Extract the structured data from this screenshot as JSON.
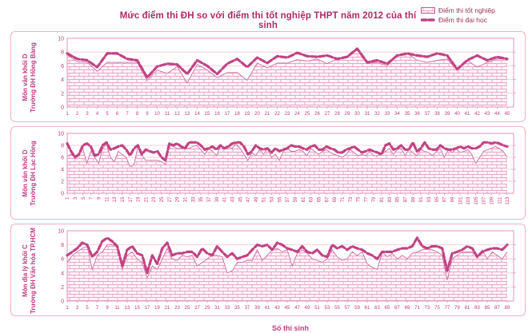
{
  "header": {
    "title": "Mức điểm thi ĐH so với điểm thi tốt nghiệp THPT năm 2012 của thí sinh",
    "legend": [
      {
        "label": "Điểm thi tốt nghiệp",
        "swatch": "pattern-area-swatch"
      },
      {
        "label": "Điểm thi đại học",
        "swatch": "dashed-line-swatch"
      }
    ]
  },
  "footer": {
    "xlabel": "Số thí sinh"
  },
  "colors": {
    "line": "#c14383",
    "area_outline": "#cc6ba2",
    "brick_line": "#eaa6c6",
    "brick_bg": "#fdf4f9",
    "grid": "#f3c2d8",
    "axis": "#df93bb",
    "tick_text": "#c23a81",
    "title_text": "#ad2b67",
    "legend_text": "#9d3156",
    "panel_border": "#efaecb"
  },
  "chart_data": [
    {
      "type": "area",
      "ylabel1": "Môn văn khối D",
      "ylabel2": "Trường ĐH Hồng Bàng",
      "x_start": 1,
      "n": 45,
      "x_tick_step": 1,
      "x_ticks_rotated": false,
      "ylim": [
        0,
        10
      ],
      "yticks": [
        0,
        2,
        4,
        6,
        8,
        10
      ],
      "grid": true,
      "legend_position": "top-right",
      "series": [
        {
          "name": "Điểm thi tốt nghiệp",
          "type": "area",
          "values": [
            7.6,
            6.6,
            6.5,
            5.2,
            6.5,
            6.5,
            6.5,
            6.5,
            3.9,
            5.4,
            4.9,
            5.9,
            3.5,
            6.2,
            5.4,
            4.3,
            5.0,
            5.0,
            3.9,
            6.4,
            5.7,
            6.4,
            6.4,
            6.9,
            6.7,
            7.0,
            6.3,
            7.0,
            7.3,
            8.3,
            6.3,
            6.5,
            6.0,
            7.5,
            7.8,
            6.8,
            6.5,
            6.8,
            7.0,
            5.4,
            6.8,
            5.8,
            6.5,
            7.0,
            7.0
          ]
        },
        {
          "name": "Điểm thi đại học",
          "type": "line",
          "values": [
            7.8,
            7.0,
            6.8,
            5.8,
            7.8,
            7.8,
            7.0,
            6.8,
            4.3,
            5.9,
            6.3,
            6.2,
            4.8,
            6.8,
            6.0,
            4.8,
            6.3,
            7.0,
            5.8,
            7.2,
            6.4,
            7.4,
            7.2,
            7.9,
            7.4,
            7.3,
            7.5,
            7.0,
            7.3,
            8.5,
            6.5,
            6.8,
            6.3,
            7.5,
            7.8,
            7.5,
            7.3,
            7.8,
            7.5,
            5.5,
            6.8,
            7.5,
            6.8,
            7.3,
            7.0
          ]
        }
      ]
    },
    {
      "type": "area",
      "ylabel1": "Môn văn khối D",
      "ylabel2": "Trường ĐH Lạc Hồng",
      "x_start": 1,
      "n": 113,
      "x_tick_step": 2,
      "x_ticks_rotated": true,
      "ylim": [
        0,
        10
      ],
      "yticks": [
        0,
        2,
        4,
        6,
        8,
        10
      ],
      "grid": true,
      "series": [
        {
          "name": "Điểm thi tốt nghiệp",
          "type": "area",
          "values": [
            6.2,
            6.5,
            6.0,
            6.5,
            7.5,
            5.0,
            7.0,
            6.0,
            5.0,
            7.5,
            8.3,
            6.0,
            5.3,
            7.0,
            6.5,
            6.0,
            4.5,
            4.8,
            7.8,
            6.3,
            5.5,
            5.5,
            5.5,
            5.5,
            5.3,
            4.8,
            8.3,
            7.8,
            7.5,
            7.5,
            7.5,
            7.5,
            7.8,
            8.0,
            7.3,
            6.5,
            7.5,
            7.0,
            6.3,
            7.8,
            7.5,
            7.8,
            7.5,
            8.3,
            7.5,
            6.5,
            5.5,
            6.8,
            6.3,
            7.3,
            6.5,
            7.5,
            6.0,
            6.5,
            5.5,
            7.0,
            7.5,
            7.0,
            7.0,
            7.3,
            7.0,
            6.3,
            7.5,
            7.0,
            6.5,
            7.0,
            7.3,
            6.8,
            6.5,
            6.3,
            6.0,
            6.5,
            7.3,
            6.8,
            6.3,
            6.5,
            6.3,
            7.0,
            6.3,
            6.3,
            6.5,
            7.0,
            7.5,
            6.5,
            7.3,
            7.5,
            6.3,
            7.3,
            6.8,
            6.3,
            7.3,
            7.0,
            6.8,
            6.3,
            7.0,
            7.5,
            6.0,
            7.3,
            6.8,
            7.5,
            6.8,
            7.0,
            7.3,
            6.5,
            5.0,
            6.0,
            7.0,
            7.3,
            7.5,
            7.8,
            7.5,
            7.0,
            6.0
          ]
        },
        {
          "name": "Điểm thi đại học",
          "type": "line",
          "values": [
            8.3,
            7.0,
            6.0,
            6.5,
            8.0,
            8.3,
            7.8,
            6.3,
            6.5,
            8.0,
            8.5,
            7.3,
            7.5,
            7.8,
            8.0,
            7.3,
            6.3,
            7.5,
            8.0,
            6.5,
            7.3,
            7.0,
            6.8,
            7.0,
            6.0,
            5.5,
            8.3,
            8.0,
            8.3,
            7.8,
            7.5,
            8.5,
            8.5,
            8.5,
            8.0,
            7.3,
            7.5,
            7.8,
            7.3,
            8.0,
            7.5,
            7.8,
            8.3,
            8.5,
            8.5,
            7.8,
            6.5,
            7.0,
            8.0,
            7.5,
            7.3,
            7.5,
            6.8,
            7.5,
            7.0,
            7.3,
            7.5,
            8.0,
            7.8,
            7.8,
            7.5,
            7.3,
            7.8,
            8.0,
            7.3,
            7.3,
            7.8,
            7.5,
            7.3,
            6.8,
            6.8,
            7.3,
            7.5,
            7.8,
            7.3,
            6.8,
            7.0,
            7.3,
            7.0,
            6.8,
            6.5,
            8.0,
            8.3,
            7.3,
            7.5,
            8.0,
            7.3,
            7.3,
            8.5,
            7.0,
            7.5,
            8.5,
            7.5,
            7.3,
            7.3,
            8.0,
            7.5,
            7.3,
            7.3,
            7.5,
            7.8,
            7.5,
            7.8,
            7.5,
            7.5,
            7.8,
            8.5,
            8.5,
            8.3,
            8.5,
            8.3,
            8.0,
            7.8
          ]
        }
      ]
    },
    {
      "type": "area",
      "ylabel1": "Môn địa lý khối C",
      "ylabel2": "Trường ĐH Văn hóa TP.HCM",
      "x_start": 1,
      "n": 89,
      "x_tick_step": 2,
      "x_ticks_rotated": false,
      "ylim": [
        0,
        10
      ],
      "yticks": [
        0,
        2,
        4,
        6,
        8,
        10
      ],
      "grid": true,
      "series": [
        {
          "name": "Điểm thi tốt nghiệp",
          "type": "area",
          "values": [
            5.5,
            6.5,
            7.0,
            7.5,
            7.8,
            4.5,
            6.5,
            7.0,
            8.0,
            8.0,
            7.8,
            4.5,
            6.5,
            7.0,
            6.0,
            5.5,
            3.3,
            5.0,
            4.5,
            6.0,
            7.5,
            6.0,
            5.8,
            6.5,
            6.3,
            6.5,
            5.0,
            5.5,
            6.0,
            6.5,
            6.5,
            6.3,
            4.0,
            4.3,
            5.5,
            5.5,
            5.8,
            5.8,
            7.3,
            5.8,
            6.5,
            7.3,
            7.5,
            7.0,
            7.3,
            5.0,
            6.8,
            7.3,
            6.8,
            6.0,
            5.8,
            5.5,
            6.0,
            7.3,
            6.3,
            5.8,
            6.0,
            7.0,
            6.5,
            7.0,
            5.3,
            4.8,
            4.5,
            7.0,
            6.3,
            6.8,
            6.0,
            6.5,
            6.0,
            6.8,
            7.0,
            7.3,
            7.5,
            7.3,
            7.0,
            6.5,
            3.0,
            6.0,
            6.5,
            7.0,
            7.0,
            7.0,
            6.3,
            7.3,
            6.0,
            7.0,
            6.5,
            6.0,
            7.0
          ]
        },
        {
          "name": "Điểm thi đại học",
          "type": "line",
          "values": [
            6.5,
            7.0,
            7.5,
            8.3,
            8.0,
            6.3,
            7.0,
            8.5,
            9.0,
            8.5,
            7.8,
            5.0,
            7.3,
            7.8,
            6.8,
            6.5,
            4.0,
            6.5,
            5.3,
            7.5,
            8.3,
            6.5,
            6.8,
            6.8,
            7.0,
            7.0,
            6.3,
            7.5,
            6.8,
            6.5,
            7.8,
            7.0,
            6.3,
            6.8,
            6.0,
            6.3,
            6.5,
            7.3,
            8.0,
            7.8,
            8.0,
            7.3,
            8.3,
            8.0,
            7.5,
            7.3,
            7.0,
            7.8,
            7.0,
            6.8,
            7.3,
            6.5,
            6.3,
            8.0,
            7.5,
            7.8,
            7.3,
            7.8,
            7.5,
            7.3,
            6.8,
            6.5,
            6.0,
            7.0,
            7.0,
            7.0,
            7.3,
            7.5,
            7.5,
            7.8,
            9.0,
            7.8,
            7.5,
            7.8,
            7.8,
            7.5,
            4.3,
            6.8,
            7.0,
            7.3,
            7.8,
            7.5,
            6.3,
            7.0,
            7.3,
            7.5,
            7.5,
            7.3,
            8.0
          ]
        }
      ]
    }
  ]
}
